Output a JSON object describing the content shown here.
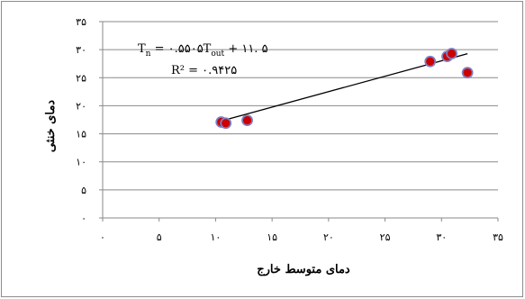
{
  "chart_data": {
    "type": "scatter",
    "title": "",
    "xlabel": "دمای متوسط خارج",
    "ylabel": "دمای خنثی",
    "xlim": [
      0,
      35
    ],
    "ylim": [
      0,
      35
    ],
    "x_ticks": [
      0,
      5,
      10,
      15,
      20,
      25,
      30,
      35
    ],
    "y_ticks": [
      0,
      5,
      10,
      15,
      20,
      25,
      30,
      35
    ],
    "x_tick_labels": [
      "۰",
      "۵",
      "۱۰",
      "۱۵",
      "۲۰",
      "۲۵",
      "۳۰",
      "۳۵"
    ],
    "y_tick_labels": [
      "۰",
      "۵",
      "۱۰",
      "۱۵",
      "۲۰",
      "۲۵",
      "۳۰",
      "۳۵"
    ],
    "grid": true,
    "legend": "none",
    "series": [
      {
        "points": [
          {
            "x": 10.5,
            "y": 17.1
          },
          {
            "x": 10.9,
            "y": 16.9
          },
          {
            "x": 12.8,
            "y": 17.4
          },
          {
            "x": 29.0,
            "y": 27.9
          },
          {
            "x": 30.5,
            "y": 28.8
          },
          {
            "x": 30.9,
            "y": 29.3
          },
          {
            "x": 32.3,
            "y": 25.9
          }
        ],
        "marker_fill": "#cc0000",
        "marker_edge": "#7f7fbf"
      }
    ],
    "trendline": {
      "slope": 0.5505,
      "intercept": 11.5,
      "x_range": [
        10.5,
        32.3
      ],
      "color": "#000000"
    },
    "annotations": {
      "equation_main": "T",
      "equation_sub_n": "n",
      "equation_mid": " = ۰.۵۵۰۵T",
      "equation_sub_out": "out",
      "equation_end": " + ۱۱. ۵",
      "r_squared": "R² = ۰.۹۴۲۵"
    },
    "colors": {
      "grid": "#8a8a8a",
      "axis": "#8a8a8a",
      "marker_fill": "#cc0000",
      "marker_edge": "#7f7fbf"
    }
  }
}
